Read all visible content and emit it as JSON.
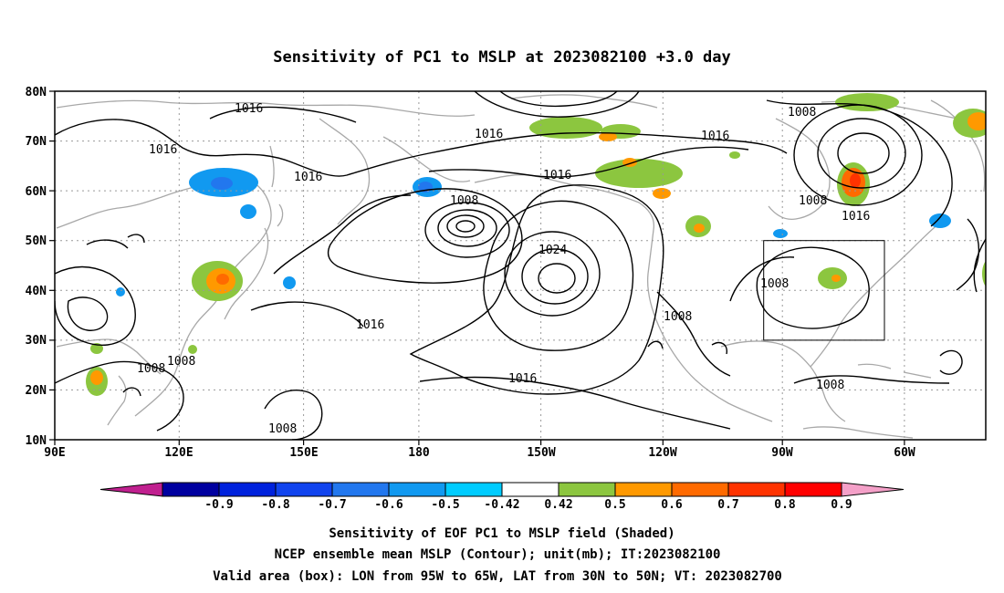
{
  "title": "Sensitivity of PC1 to MSLP at 2023082100 +3.0 day",
  "lat_labels": [
    "80N",
    "70N",
    "60N",
    "50N",
    "40N",
    "30N",
    "20N",
    "10N"
  ],
  "lon_labels": [
    "90E",
    "120E",
    "150E",
    "180",
    "150W",
    "120W",
    "90W",
    "60W"
  ],
  "contour_labels": [
    "1016",
    "1016",
    "1016",
    "1016",
    "1016",
    "1016",
    "1016",
    "1016",
    "1016",
    "1008",
    "1008",
    "1008",
    "1008",
    "1008",
    "1008",
    "1008",
    "1008",
    "1008",
    "1024"
  ],
  "colorbar": {
    "labels": [
      "-0.9",
      "-0.8",
      "-0.7",
      "-0.6",
      "-0.5",
      "-0.42",
      "0.42",
      "0.5",
      "0.6",
      "0.7",
      "0.8",
      "0.9"
    ],
    "colors": [
      "#c0208f",
      "#0000a0",
      "#0022dd",
      "#1144ee",
      "#2277ee",
      "#1199f0",
      "#00ccff",
      "#ffffff",
      "#8cc63f",
      "#ff9900",
      "#ff6a00",
      "#ff3300",
      "#ff0000",
      "#f4a0c8"
    ]
  },
  "valid_box": {
    "lon_from": "95W",
    "lon_to": "65W",
    "lat_from": "30N",
    "lat_to": "50N"
  },
  "captions": {
    "line1": "Sensitivity of EOF PC1 to MSLP field (Shaded)",
    "line2": "NCEP ensemble mean MSLP (Contour); unit(mb); IT:2023082100",
    "line3": "Valid area (box): LON from 95W to 65W, LAT from 30N to 50N; VT: 2023082700"
  }
}
